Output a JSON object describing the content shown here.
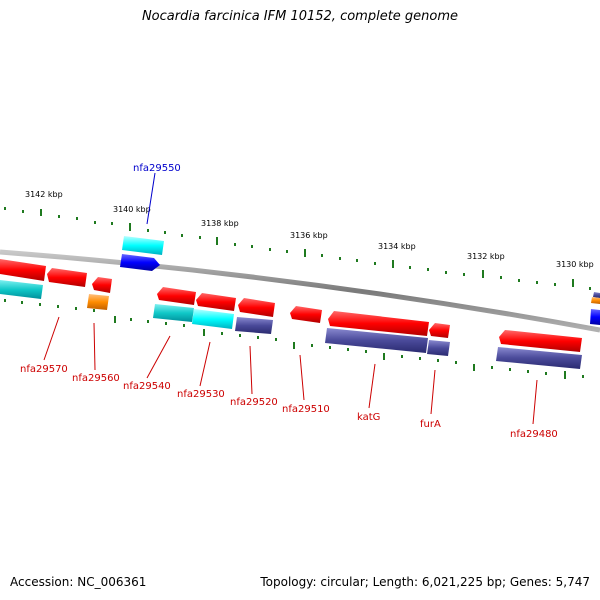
{
  "title": "Nocardia farcinica IFM 10152, complete genome",
  "footer": {
    "accession": "Accession: NC_006361",
    "topology": "Topology: circular; Length: 6,021,225 bp; Genes: 5,747"
  },
  "colors": {
    "backbone": "#888888",
    "tick": "#1f7a1f",
    "gene_red": "#ff0000",
    "gene_cyan": "#00ffff",
    "gene_teal": "#00c4c4",
    "gene_navy": "#4a4a9a",
    "gene_blue": "#0000ff",
    "gene_orange": "#ff8c00",
    "label_red": "#cc0000",
    "label_blue": "#0000cc"
  },
  "kbp_labels": [
    "3142 kbp",
    "3140 kbp",
    "3138 kbp",
    "3136 kbp",
    "3134 kbp",
    "3132 kbp",
    "3130 kbp"
  ],
  "gene_labels": [
    "nfa29550",
    "nfa29570",
    "nfa29560",
    "nfa29540",
    "nfa29530",
    "nfa29520",
    "nfa29510",
    "katG",
    "furA",
    "nfa29480"
  ]
}
